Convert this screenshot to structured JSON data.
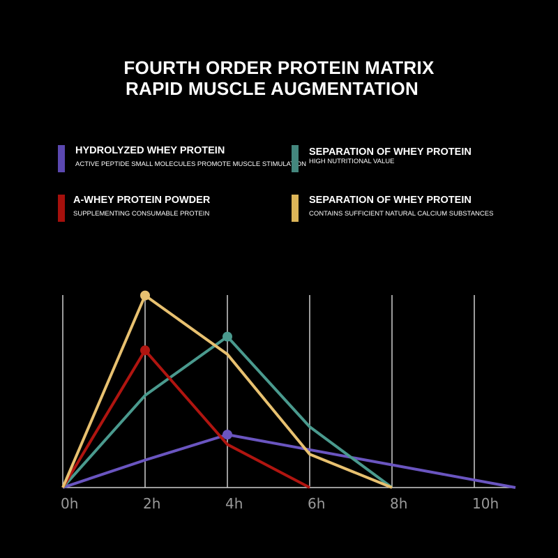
{
  "title_lines": [
    "FOURTH ORDER PROTEIN MATRIX",
    "RAPID MUSCLE AUGMENTATION"
  ],
  "legend": [
    {
      "title": "HYDROLYZED WHEY PROTEIN",
      "desc": "ACTIVE PEPTIDE SMALL MOLECULES PROMOTE MUSCLE STIMULATION",
      "color": "#5b48b0"
    },
    {
      "title": "SEPARATION OF WHEY PROTEIN",
      "desc": "HIGH NUTRITIONAL VALUE",
      "color": "#44877e"
    },
    {
      "title": "A-WHEY PROTEIN POWDER",
      "desc": "SUPPLEMENTING CONSUMABLE PROTEIN",
      "color": "#a5100c"
    },
    {
      "title": "SEPARATION OF WHEY PROTEIN",
      "desc": "CONTAINS SUFFICIENT NATURAL CALCIUM SUBSTANCES",
      "color": "#dcb558"
    }
  ],
  "chart_data": {
    "type": "line",
    "title": "FOURTH ORDER PROTEIN MATRIX RAPID MUSCLE AUGMENTATION",
    "xlabel": "",
    "ylabel": "",
    "x_ticks": [
      "0h",
      "2h",
      "4h",
      "6h",
      "8h",
      "10h"
    ],
    "xlim": [
      0,
      11
    ],
    "ylim": [
      0,
      100
    ],
    "y_axis_labels": false,
    "grid": "vertical",
    "legend_placement": "top",
    "series": [
      {
        "name": "HYDROLYZED WHEY PROTEIN",
        "color": "#6a55c0",
        "x": [
          0,
          2,
          4,
          11
        ],
        "y": [
          0,
          14,
          27,
          0
        ],
        "marker_at": 4
      },
      {
        "name": "SEPARATION OF WHEY PROTEIN (HIGH NUTRITIONAL VALUE)",
        "color": "#4a9a8e",
        "x": [
          0,
          2,
          4,
          6,
          8
        ],
        "y": [
          0,
          47,
          77,
          31,
          0
        ],
        "marker_at": 4
      },
      {
        "name": "A-WHEY PROTEIN POWDER",
        "color": "#b01510",
        "x": [
          0,
          2,
          4,
          6
        ],
        "y": [
          0,
          70,
          22,
          0
        ],
        "marker_at": 2
      },
      {
        "name": "SEPARATION OF WHEY PROTEIN (CALCIUM)",
        "color": "#e8c170",
        "x": [
          0,
          2,
          4,
          6,
          8
        ],
        "y": [
          0,
          98,
          68,
          17,
          0
        ],
        "marker_at": 2
      }
    ]
  }
}
